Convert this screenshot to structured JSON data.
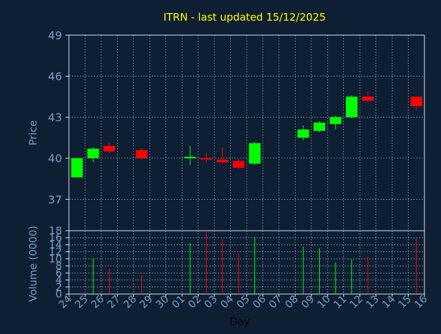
{
  "chart_data": {
    "type": "candlestick",
    "title": "ITRN - last updated 15/12/2025",
    "xlabel": "Day",
    "colors": {
      "background": "#0f1f33",
      "axis": "#d9e6f2",
      "label": "#7d9cc0",
      "title": "#ffff00",
      "grid": "#d9e6f2",
      "up": "#00ff00",
      "down": "#ff0000"
    },
    "x_ticks": [
      "24",
      "25",
      "26",
      "27",
      "28",
      "29",
      "30",
      "01",
      "02",
      "03",
      "04",
      "05",
      "06",
      "07",
      "08",
      "09",
      "10",
      "11",
      "12",
      "13",
      "14",
      "15",
      "16"
    ],
    "price": {
      "ylabel": "Price",
      "ylim": [
        34.7,
        49
      ],
      "yticks": [
        "49",
        "46",
        "43",
        "40",
        "37"
      ],
      "candles": [
        {
          "day": "24",
          "open": 38.6,
          "close": 40.0,
          "high": 40.0,
          "low": 38.6
        },
        {
          "day": "25",
          "open": 40.0,
          "close": 40.7,
          "high": 40.8,
          "low": 39.7
        },
        {
          "day": "26",
          "open": 40.9,
          "close": 40.5,
          "high": 41.1,
          "low": 40.4
        },
        {
          "day": "28",
          "open": 40.6,
          "close": 40.0,
          "high": 40.7,
          "low": 39.9
        },
        {
          "day": "01",
          "open": 40.0,
          "close": 40.1,
          "high": 40.9,
          "low": 39.5
        },
        {
          "day": "02",
          "open": 40.0,
          "close": 39.9,
          "high": 40.4,
          "low": 39.7
        },
        {
          "day": "03",
          "open": 39.9,
          "close": 39.7,
          "high": 40.8,
          "low": 39.6
        },
        {
          "day": "04",
          "open": 39.8,
          "close": 39.3,
          "high": 39.9,
          "low": 39.2
        },
        {
          "day": "05",
          "open": 39.6,
          "close": 41.1,
          "high": 41.2,
          "low": 39.5
        },
        {
          "day": "08",
          "open": 41.5,
          "close": 42.1,
          "high": 42.4,
          "low": 41.3
        },
        {
          "day": "09",
          "open": 42.0,
          "close": 42.6,
          "high": 42.7,
          "low": 41.9
        },
        {
          "day": "10",
          "open": 42.5,
          "close": 43.0,
          "high": 43.1,
          "low": 42.1
        },
        {
          "day": "11",
          "open": 43.0,
          "close": 44.5,
          "high": 44.6,
          "low": 42.9
        },
        {
          "day": "12",
          "open": 44.5,
          "close": 44.2,
          "high": 44.9,
          "low": 44.1
        },
        {
          "day": "15",
          "open": 44.5,
          "close": 43.8,
          "high": 44.5,
          "low": 43.5
        }
      ]
    },
    "volume": {
      "ylabel": "Volume (0000)",
      "ylim": [
        0,
        18
      ],
      "yticks": [
        "18",
        "16",
        "14",
        "12",
        "10",
        "8",
        "6",
        "4",
        "2",
        "0"
      ],
      "bars": [
        {
          "day": "25",
          "value": 10.0,
          "direction": "up"
        },
        {
          "day": "26",
          "value": 7.2,
          "direction": "down"
        },
        {
          "day": "28",
          "value": 5.5,
          "direction": "down"
        },
        {
          "day": "01",
          "value": 14.5,
          "direction": "up"
        },
        {
          "day": "02",
          "value": 17.5,
          "direction": "down"
        },
        {
          "day": "03",
          "value": 15.5,
          "direction": "down"
        },
        {
          "day": "04",
          "value": 11.5,
          "direction": "down"
        },
        {
          "day": "05",
          "value": 16.2,
          "direction": "up"
        },
        {
          "day": "08",
          "value": 13.5,
          "direction": "up"
        },
        {
          "day": "09",
          "value": 13.0,
          "direction": "up"
        },
        {
          "day": "10",
          "value": 9.0,
          "direction": "up"
        },
        {
          "day": "11",
          "value": 9.8,
          "direction": "up"
        },
        {
          "day": "12",
          "value": 10.7,
          "direction": "down"
        },
        {
          "day": "15",
          "value": 16.0,
          "direction": "down"
        }
      ]
    }
  }
}
